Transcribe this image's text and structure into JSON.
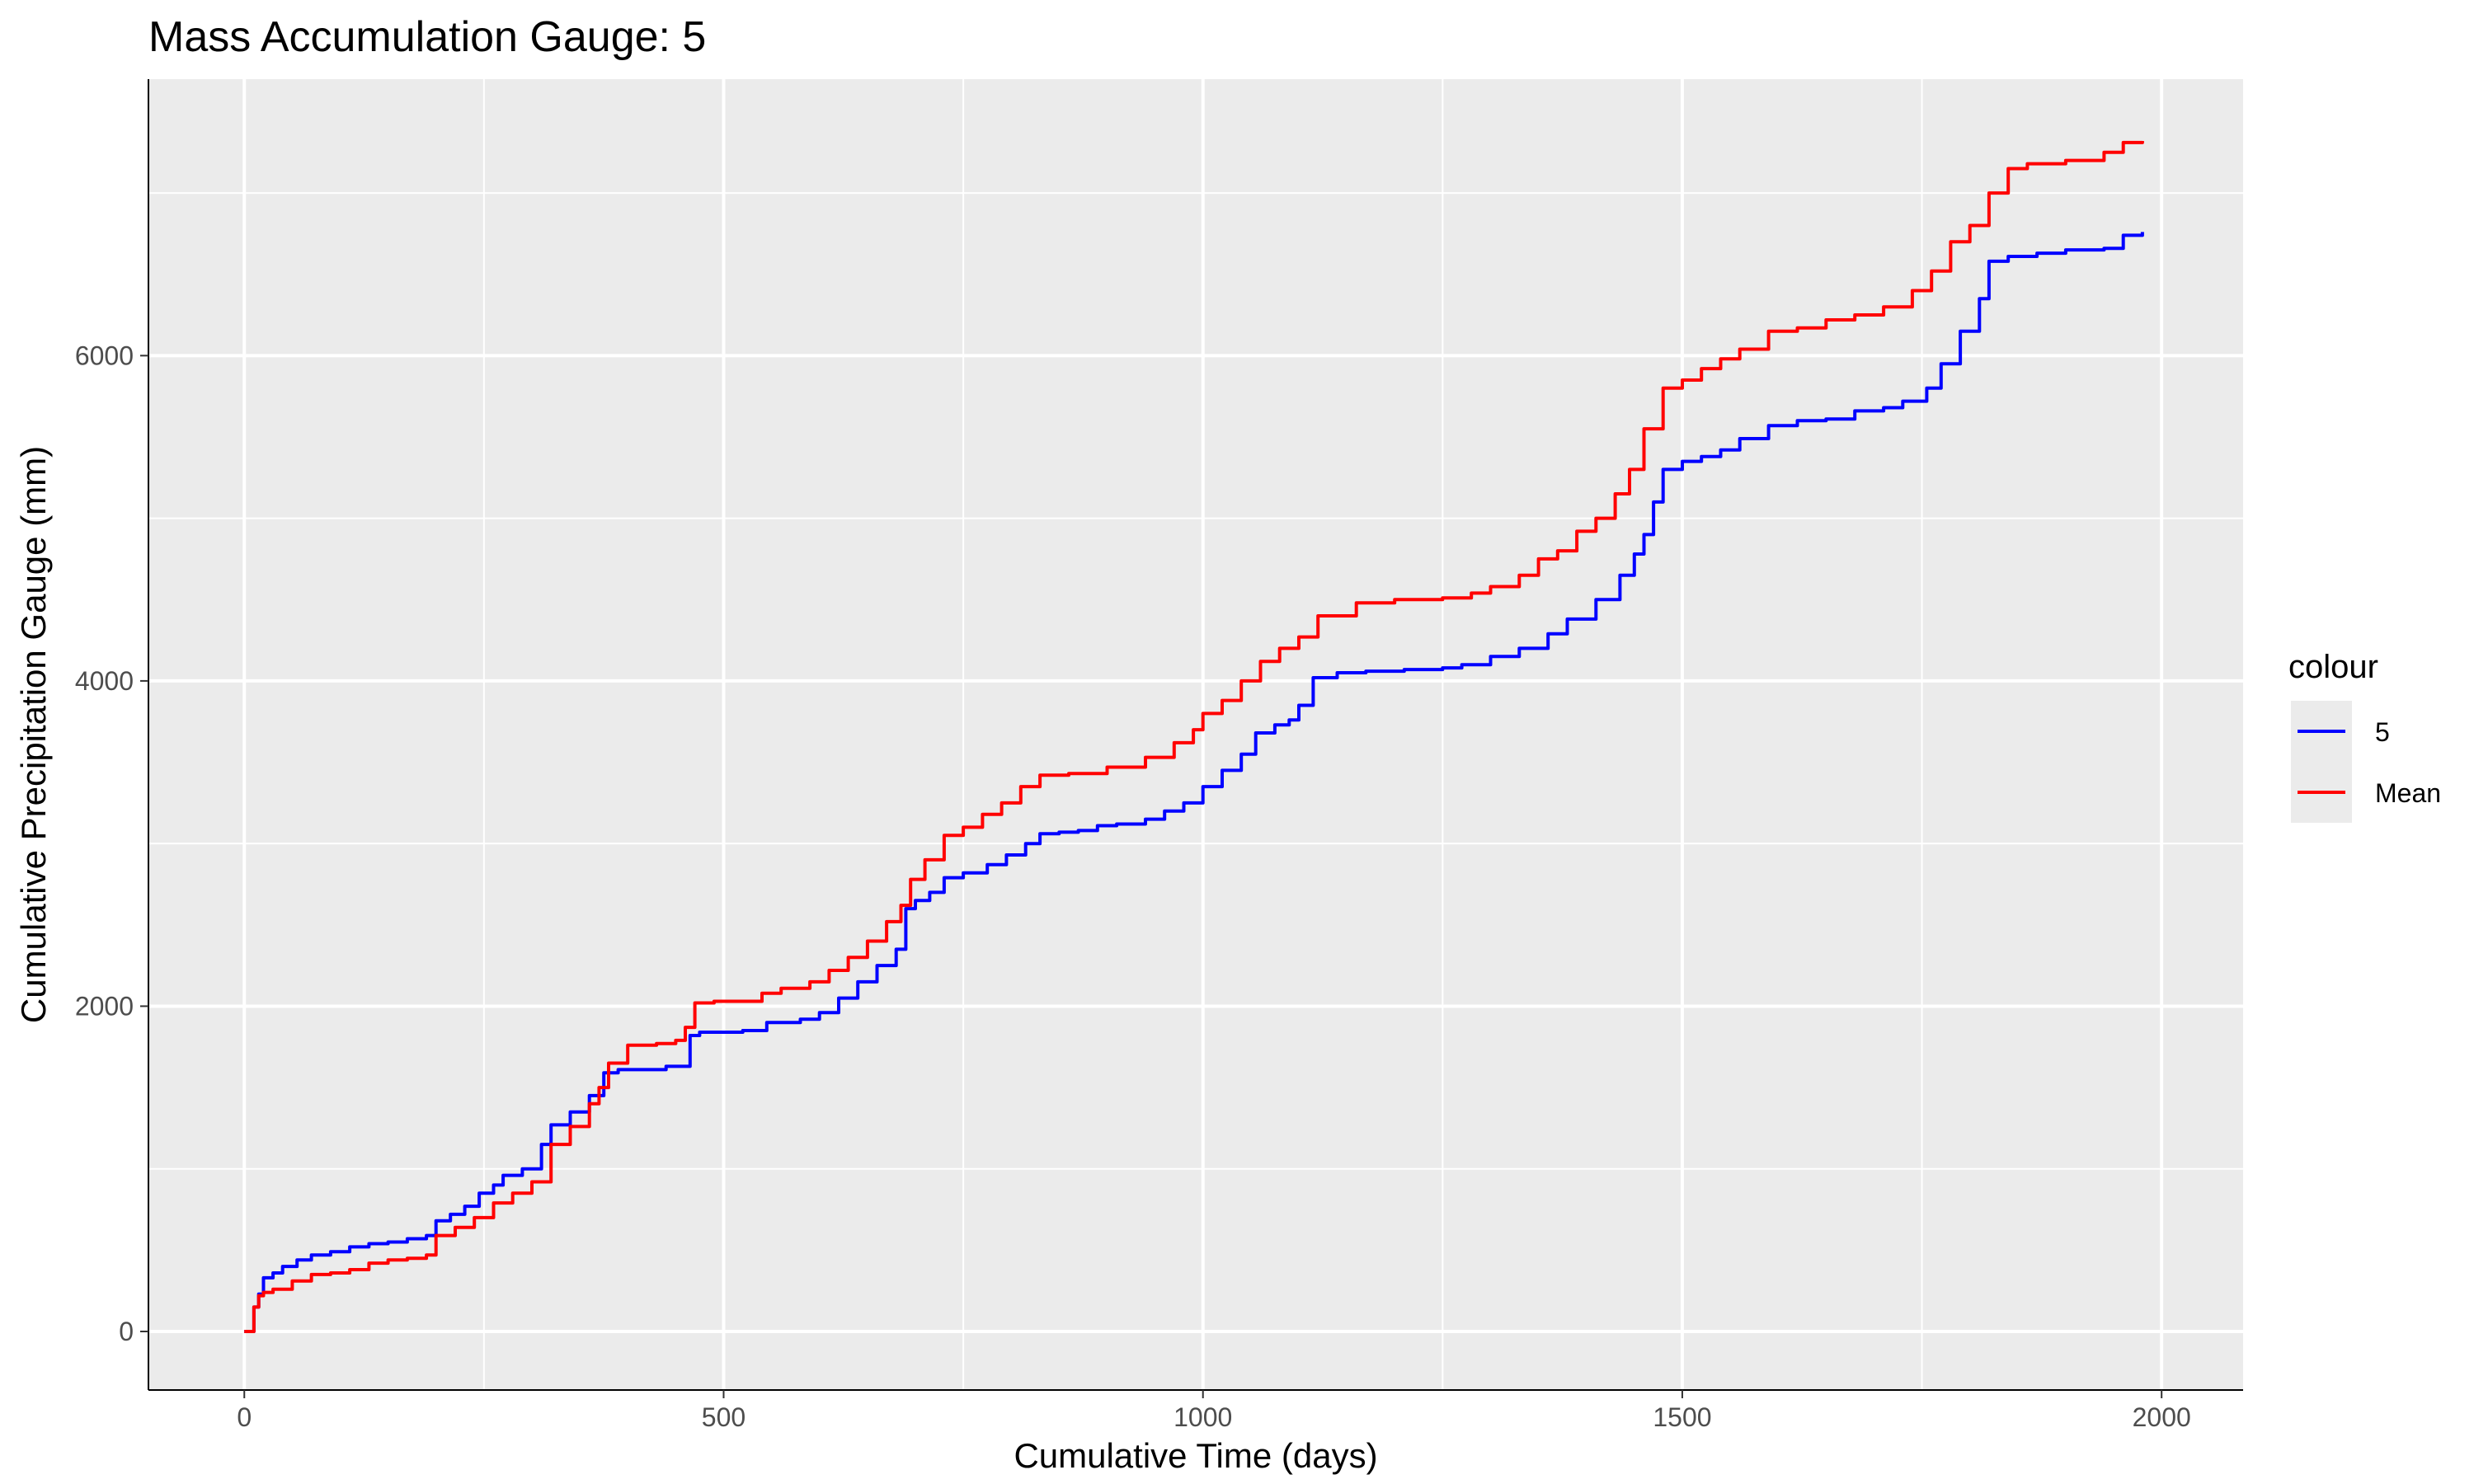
{
  "chart_data": {
    "type": "line",
    "title": "Mass Accumulation Gauge: 5",
    "xlabel": "Cumulative Time (days)",
    "ylabel": "Cumulative Precipitation Gauge (mm)",
    "xlim": [
      -100,
      2085
    ],
    "ylim": [
      -360,
      7700
    ],
    "x_ticks": [
      0,
      500,
      1000,
      1500,
      2000
    ],
    "x_tick_labels": [
      "0",
      "500",
      "1000",
      "1500",
      "2000"
    ],
    "y_ticks": [
      0,
      2000,
      4000,
      6000
    ],
    "y_tick_labels": [
      "0",
      "2000",
      "4000",
      "6000"
    ],
    "x_minor": [
      250,
      750,
      1250,
      1750
    ],
    "y_minor": [
      1000,
      3000,
      5000,
      7000
    ],
    "grid": true,
    "legend": {
      "title": "colour",
      "position": "right"
    },
    "series": [
      {
        "name": "5",
        "color": "#0000ff",
        "x": [
          0,
          5,
          10,
          15,
          20,
          30,
          40,
          55,
          70,
          90,
          110,
          130,
          150,
          170,
          190,
          200,
          215,
          230,
          245,
          260,
          270,
          290,
          310,
          320,
          340,
          360,
          375,
          390,
          410,
          440,
          465,
          475,
          490,
          520,
          545,
          580,
          600,
          620,
          640,
          660,
          680,
          690,
          700,
          715,
          730,
          750,
          775,
          795,
          815,
          830,
          850,
          870,
          890,
          910,
          940,
          960,
          980,
          1000,
          1020,
          1040,
          1055,
          1075,
          1090,
          1100,
          1115,
          1140,
          1170,
          1210,
          1250,
          1270,
          1300,
          1330,
          1360,
          1380,
          1410,
          1435,
          1450,
          1460,
          1470,
          1480,
          1500,
          1520,
          1540,
          1560,
          1590,
          1620,
          1650,
          1680,
          1710,
          1730,
          1755,
          1770,
          1790,
          1810,
          1820,
          1840,
          1870,
          1900,
          1940,
          1960,
          1980
        ],
        "y": [
          0,
          0,
          150,
          230,
          330,
          360,
          400,
          440,
          470,
          490,
          520,
          540,
          550,
          570,
          590,
          680,
          720,
          770,
          850,
          900,
          960,
          1000,
          1150,
          1270,
          1350,
          1450,
          1590,
          1610,
          1610,
          1630,
          1820,
          1840,
          1840,
          1850,
          1900,
          1920,
          1960,
          2050,
          2150,
          2250,
          2350,
          2600,
          2650,
          2700,
          2790,
          2820,
          2870,
          2930,
          3000,
          3060,
          3070,
          3080,
          3110,
          3120,
          3150,
          3200,
          3250,
          3350,
          3450,
          3550,
          3680,
          3730,
          3760,
          3850,
          4020,
          4050,
          4060,
          4070,
          4080,
          4100,
          4150,
          4200,
          4290,
          4380,
          4500,
          4650,
          4780,
          4900,
          5100,
          5300,
          5350,
          5380,
          5420,
          5490,
          5570,
          5600,
          5610,
          5660,
          5680,
          5720,
          5800,
          5950,
          6150,
          6350,
          6580,
          6610,
          6630,
          6650,
          6660,
          6740,
          6760
        ]
      },
      {
        "name": "Mean",
        "color": "#ff0000",
        "x": [
          0,
          5,
          10,
          15,
          20,
          30,
          50,
          70,
          90,
          110,
          130,
          150,
          170,
          190,
          200,
          220,
          240,
          260,
          280,
          300,
          320,
          340,
          360,
          370,
          380,
          400,
          430,
          450,
          460,
          470,
          490,
          520,
          540,
          560,
          590,
          610,
          630,
          650,
          670,
          685,
          695,
          710,
          730,
          750,
          770,
          790,
          810,
          830,
          860,
          900,
          940,
          970,
          990,
          1000,
          1020,
          1040,
          1060,
          1080,
          1100,
          1120,
          1160,
          1200,
          1250,
          1280,
          1300,
          1330,
          1350,
          1370,
          1390,
          1410,
          1430,
          1445,
          1460,
          1480,
          1500,
          1520,
          1540,
          1560,
          1590,
          1620,
          1650,
          1680,
          1710,
          1740,
          1760,
          1780,
          1800,
          1820,
          1840,
          1860,
          1900,
          1940,
          1960,
          1980
        ],
        "y": [
          0,
          0,
          150,
          220,
          240,
          260,
          310,
          350,
          360,
          380,
          420,
          440,
          450,
          470,
          590,
          640,
          700,
          790,
          850,
          920,
          1150,
          1260,
          1400,
          1500,
          1650,
          1760,
          1770,
          1790,
          1870,
          2020,
          2030,
          2030,
          2080,
          2110,
          2150,
          2220,
          2300,
          2400,
          2520,
          2620,
          2780,
          2900,
          3050,
          3100,
          3180,
          3250,
          3350,
          3420,
          3430,
          3470,
          3530,
          3620,
          3700,
          3800,
          3880,
          4000,
          4120,
          4200,
          4270,
          4400,
          4480,
          4500,
          4510,
          4540,
          4580,
          4650,
          4750,
          4800,
          4920,
          5000,
          5150,
          5300,
          5550,
          5800,
          5850,
          5920,
          5980,
          6040,
          6150,
          6170,
          6220,
          6250,
          6300,
          6400,
          6520,
          6700,
          6800,
          7000,
          7150,
          7180,
          7200,
          7250,
          7310,
          7320
        ]
      }
    ]
  }
}
